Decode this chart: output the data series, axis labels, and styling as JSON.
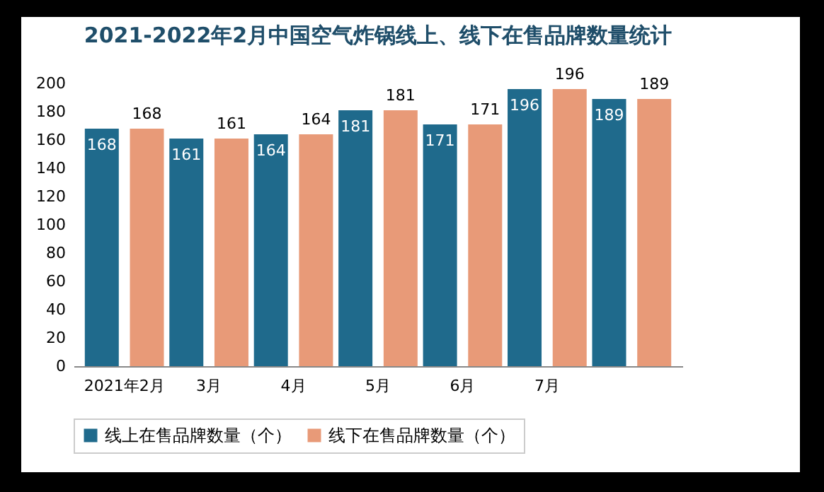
{
  "chart_data": {
    "type": "bar",
    "title": "2021-2022年2月中国空气炸锅线上、线下在售品牌数量统计",
    "categories": [
      "2021年2月",
      "3月",
      "4月",
      "5月",
      "6月",
      "7月",
      null
    ],
    "series": [
      {
        "name": "线上在售品牌数量（个）",
        "color": "#1f6a8c",
        "values": [
          168,
          161,
          164,
          181,
          171,
          196,
          189
        ]
      },
      {
        "name": "线下在售品牌数量（个）",
        "color": "#e89a78",
        "values": [
          168,
          161,
          164,
          181,
          171,
          196,
          189
        ]
      }
    ],
    "ylim": [
      0,
      200
    ],
    "yticks": [
      0,
      20,
      40,
      60,
      80,
      100,
      120,
      140,
      160,
      180,
      200
    ],
    "grid": false,
    "legend": "bottom",
    "data_labels": true
  }
}
